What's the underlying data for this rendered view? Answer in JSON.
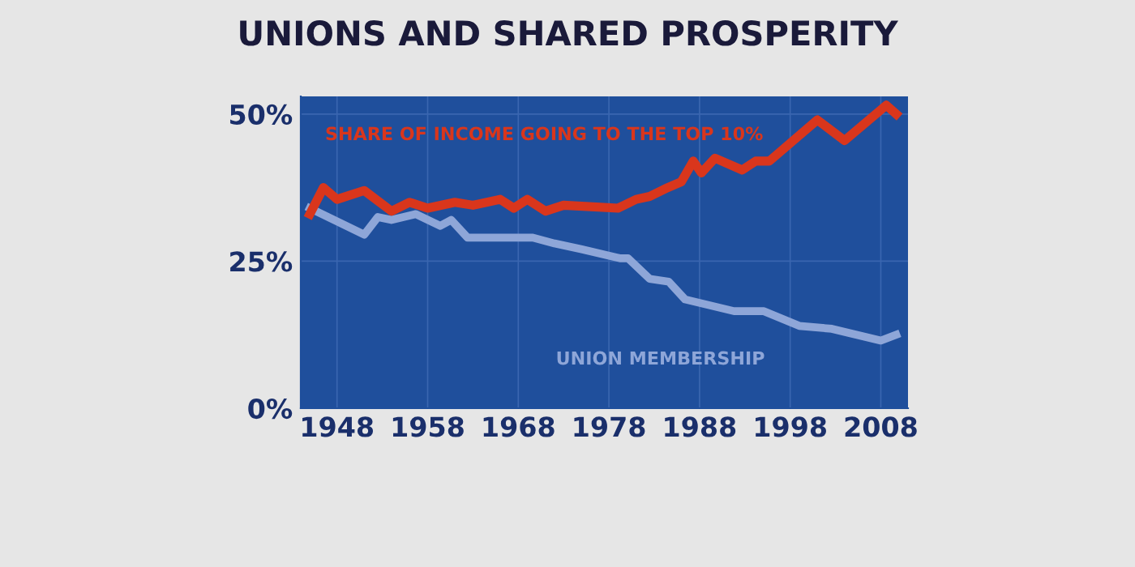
{
  "chart_data": {
    "type": "line",
    "title": "UNIONS AND SHARED PROSPERITY",
    "xlim": [
      1944,
      2011
    ],
    "ylim": [
      0,
      53
    ],
    "xticks": [
      1948,
      1958,
      1968,
      1978,
      1988,
      1998,
      2008
    ],
    "yticks": [
      {
        "value": 0,
        "label": "0%"
      },
      {
        "value": 25,
        "label": "25%"
      },
      {
        "value": 50,
        "label": "50%"
      }
    ],
    "grid": true,
    "legend": false,
    "marker": "none",
    "line_style": "solid",
    "series": [
      {
        "name": "SHARE OF INCOME GOING TO THE TOP 10%",
        "color": "#d9361c",
        "x": [
          1945,
          1946.5,
          1948,
          1951,
          1954,
          1956,
          1958,
          1961,
          1963,
          1966,
          1967.5,
          1969,
          1971,
          1973,
          1979,
          1981,
          1982.5,
          1984.5,
          1986,
          1987.3,
          1988.2,
          1989.7,
          1992.7,
          1994.2,
          1995.7,
          2001,
          2004,
          2008.6,
          2009.7
        ],
        "values": [
          33,
          37.5,
          35.5,
          37,
          33.5,
          35,
          34,
          35,
          34.5,
          35.5,
          34,
          35.5,
          33.5,
          34.5,
          34,
          35.5,
          36,
          37.5,
          38.5,
          42,
          40,
          42.5,
          40.5,
          42,
          42,
          49,
          45.5,
          51.5,
          50
        ]
      },
      {
        "name": "UNION MEMBERSHIP",
        "color": "#8ea6d8",
        "x": [
          1945,
          1951,
          1952.5,
          1954,
          1956.7,
          1959.4,
          1960.6,
          1962.4,
          1969.6,
          1972,
          1975,
          1979.2,
          1980.1,
          1982.5,
          1984.6,
          1986.4,
          1991.8,
          1995.1,
          1999,
          2002.6,
          2008,
          2009.7
        ],
        "values": [
          34,
          29.5,
          32.5,
          32,
          33,
          31,
          32,
          29,
          29,
          28,
          27,
          25.5,
          25.5,
          22,
          21.5,
          18.5,
          16.5,
          16.5,
          14,
          13.5,
          11.5,
          12.5
        ]
      }
    ]
  }
}
